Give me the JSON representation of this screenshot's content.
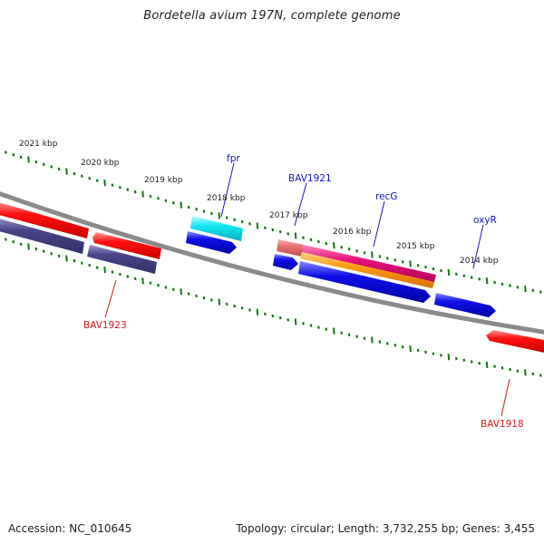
{
  "title": "Bordetella avium 197N, complete genome",
  "footer": {
    "accession": "Accession: NC_010645",
    "summary": "Topology: circular; Length: 3,732,255 bp; Genes: 3,455"
  },
  "scale_labels": [
    "2021 kbp",
    "2020 kbp",
    "2019 kbp",
    "2018 kbp",
    "2017 kbp",
    "2016 kbp",
    "2015 kbp",
    "2014 kbp"
  ],
  "gene_labels": {
    "fpr": "fpr",
    "BAV1921": "BAV1921",
    "recG": "recG",
    "oxyR": "oxyR",
    "BAV1923": "BAV1923",
    "BAV1918": "BAV1918"
  },
  "colors": {
    "backbone": "#8a8a8a",
    "ticks": "#117711",
    "forward_label": "#1515c8",
    "reverse_label": "#d41a1a",
    "red_gene": "#ff1010",
    "navy_gene": "#4a4488",
    "blue_gene": "#1010e8",
    "cyan_gene": "#10e8f0",
    "magenta_gene": "#e8107a",
    "orange_gene": "#ff9a10",
    "salmon_gene": "#e87070"
  }
}
